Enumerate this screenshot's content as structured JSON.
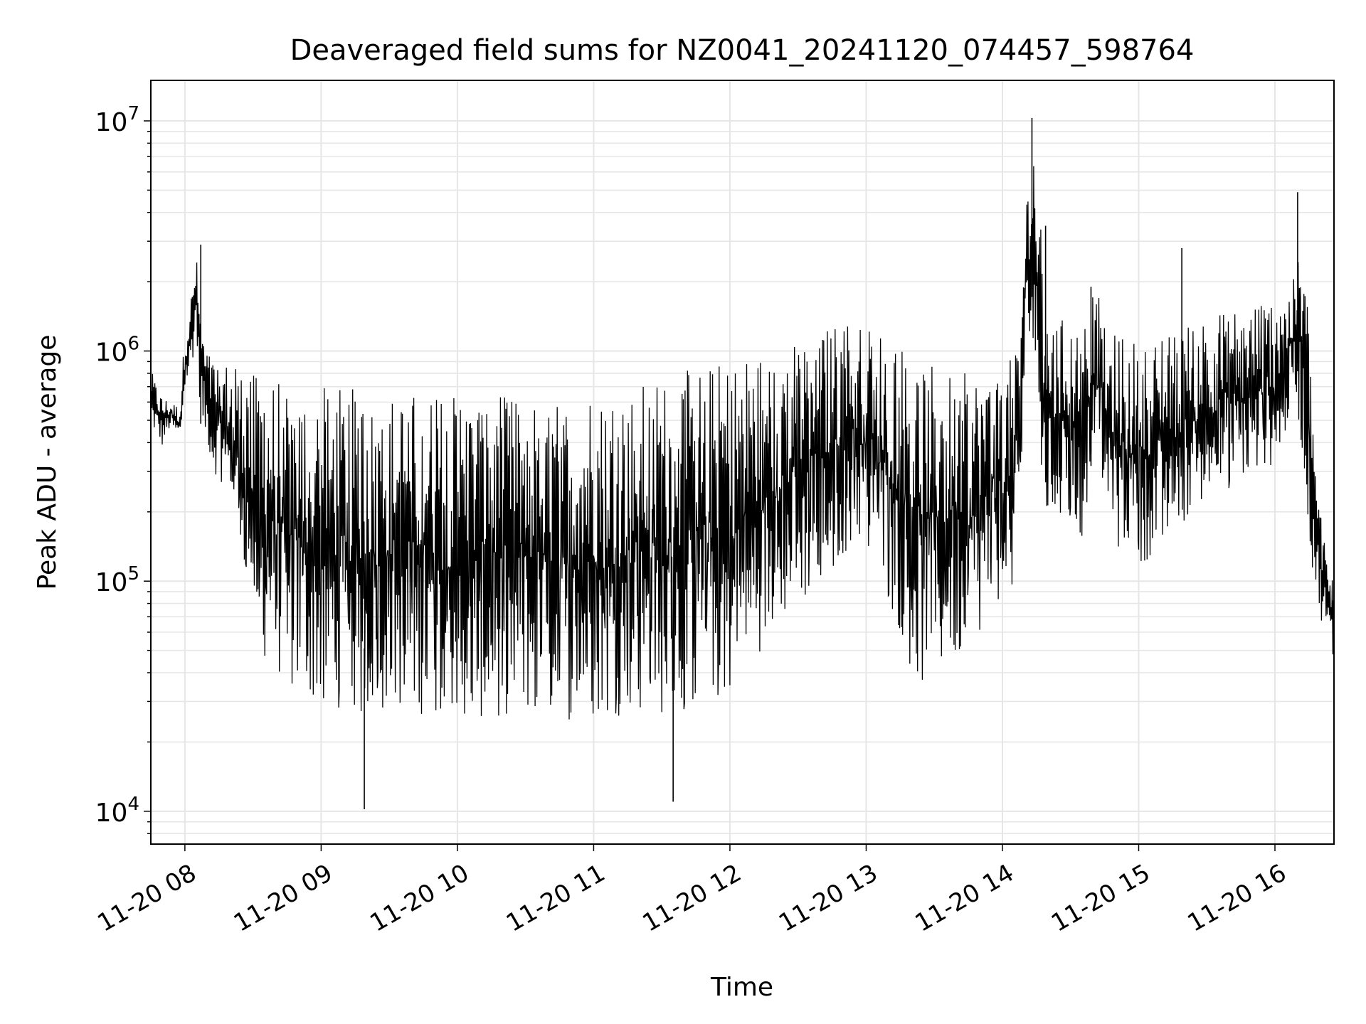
{
  "chart_data": {
    "type": "line",
    "title": "Deaveraged field sums for NZ0041_20241120_074457_598764",
    "xlabel": "Time",
    "ylabel": "Peak ADU - average",
    "yscale": "log",
    "ylim": [
      7200,
      15000000
    ],
    "xlim": [
      "2024-11-20T07:45:00",
      "2024-11-20T16:26:00"
    ],
    "grid": true,
    "line_color": "#000000",
    "grid_color": "#e6e6e6",
    "x_ticks": [
      {
        "value": "2024-11-20T08:00:00",
        "label": "11-20 08"
      },
      {
        "value": "2024-11-20T09:00:00",
        "label": "11-20 09"
      },
      {
        "value": "2024-11-20T10:00:00",
        "label": "11-20 10"
      },
      {
        "value": "2024-11-20T11:00:00",
        "label": "11-20 11"
      },
      {
        "value": "2024-11-20T12:00:00",
        "label": "11-20 12"
      },
      {
        "value": "2024-11-20T13:00:00",
        "label": "11-20 13"
      },
      {
        "value": "2024-11-20T14:00:00",
        "label": "11-20 14"
      },
      {
        "value": "2024-11-20T15:00:00",
        "label": "11-20 15"
      },
      {
        "value": "2024-11-20T16:00:00",
        "label": "11-20 16"
      }
    ],
    "y_ticks": [
      {
        "value": 10000,
        "base": "10",
        "exp": "4"
      },
      {
        "value": 100000,
        "base": "10",
        "exp": "5"
      },
      {
        "value": 1000000,
        "base": "10",
        "exp": "6"
      },
      {
        "value": 10000000,
        "base": "10",
        "exp": "7"
      }
    ],
    "series": [
      {
        "x": [
          "2024-11-20T07:45:00",
          "2024-11-20T07:46:00",
          "2024-11-20T07:48:00",
          "2024-11-20T07:50:00",
          "2024-11-20T07:52:00",
          "2024-11-20T07:54:00",
          "2024-11-20T07:56:00",
          "2024-11-20T07:58:00",
          "2024-11-20T08:00:00",
          "2024-11-20T08:02:00",
          "2024-11-20T08:04:00",
          "2024-11-20T08:05:00",
          "2024-11-20T08:06:00",
          "2024-11-20T08:08:00",
          "2024-11-20T08:10:00",
          "2024-11-20T08:12:00",
          "2024-11-20T08:15:00",
          "2024-11-20T08:18:00",
          "2024-11-20T08:21:00",
          "2024-11-20T08:24:00",
          "2024-11-20T08:27:00",
          "2024-11-20T08:30:00",
          "2024-11-20T08:33:00",
          "2024-11-20T08:36:00",
          "2024-11-20T08:40:00",
          "2024-11-20T08:44:00",
          "2024-11-20T08:48:00",
          "2024-11-20T08:52:00",
          "2024-11-20T08:56:00",
          "2024-11-20T09:00:00",
          "2024-11-20T09:04:00",
          "2024-11-20T09:08:00",
          "2024-11-20T09:12:00",
          "2024-11-20T09:16:00",
          "2024-11-20T09:20:00",
          "2024-11-20T09:25:00",
          "2024-11-20T09:30:00",
          "2024-11-20T09:35:00",
          "2024-11-20T09:40:00",
          "2024-11-20T09:45:00",
          "2024-11-20T09:50:00",
          "2024-11-20T09:55:00",
          "2024-11-20T10:00:00",
          "2024-11-20T10:05:00",
          "2024-11-20T10:10:00",
          "2024-11-20T10:15:00",
          "2024-11-20T10:20:00",
          "2024-11-20T10:25:00",
          "2024-11-20T10:30:00",
          "2024-11-20T10:35:00",
          "2024-11-20T10:40:00",
          "2024-11-20T10:45:00",
          "2024-11-20T10:50:00",
          "2024-11-20T10:55:00",
          "2024-11-20T11:00:00",
          "2024-11-20T11:05:00",
          "2024-11-20T11:10:00",
          "2024-11-20T11:15:00",
          "2024-11-20T11:20:00",
          "2024-11-20T11:25:00",
          "2024-11-20T11:30:00",
          "2024-11-20T11:35:00",
          "2024-11-20T11:40:00",
          "2024-11-20T11:45:00",
          "2024-11-20T11:50:00",
          "2024-11-20T11:55:00",
          "2024-11-20T12:00:00",
          "2024-11-20T12:05:00",
          "2024-11-20T12:10:00",
          "2024-11-20T12:15:00",
          "2024-11-20T12:20:00",
          "2024-11-20T12:25:00",
          "2024-11-20T12:30:00",
          "2024-11-20T12:35:00",
          "2024-11-20T12:40:00",
          "2024-11-20T12:45:00",
          "2024-11-20T12:50:00",
          "2024-11-20T12:55:00",
          "2024-11-20T13:00:00",
          "2024-11-20T13:05:00",
          "2024-11-20T13:10:00",
          "2024-11-20T13:15:00",
          "2024-11-20T13:20:00",
          "2024-11-20T13:25:00",
          "2024-11-20T13:30:00",
          "2024-11-20T13:35:00",
          "2024-11-20T13:40:00",
          "2024-11-20T13:45:00",
          "2024-11-20T13:50:00",
          "2024-11-20T13:55:00",
          "2024-11-20T14:00:00",
          "2024-11-20T14:05:00",
          "2024-11-20T14:08:00",
          "2024-11-20T14:10:00",
          "2024-11-20T14:12:00",
          "2024-11-20T14:14:00",
          "2024-11-20T14:15:00",
          "2024-11-20T14:18:00",
          "2024-11-20T14:20:00",
          "2024-11-20T14:25:00",
          "2024-11-20T14:30:00",
          "2024-11-20T14:35:00",
          "2024-11-20T14:38:00",
          "2024-11-20T14:40:00",
          "2024-11-20T14:43:00",
          "2024-11-20T14:46:00",
          "2024-11-20T14:50:00",
          "2024-11-20T14:55:00",
          "2024-11-20T15:00:00",
          "2024-11-20T15:05:00",
          "2024-11-20T15:10:00",
          "2024-11-20T15:15:00",
          "2024-11-20T15:20:00",
          "2024-11-20T15:25:00",
          "2024-11-20T15:30:00",
          "2024-11-20T15:35:00",
          "2024-11-20T15:40:00",
          "2024-11-20T15:45:00",
          "2024-11-20T15:50:00",
          "2024-11-20T15:55:00",
          "2024-11-20T16:00:00",
          "2024-11-20T16:04:00",
          "2024-11-20T16:06:00",
          "2024-11-20T16:08:00",
          "2024-11-20T16:10:00",
          "2024-11-20T16:12:00",
          "2024-11-20T16:14:00",
          "2024-11-20T16:16:00",
          "2024-11-20T16:18:00",
          "2024-11-20T16:20:00",
          "2024-11-20T16:22:00",
          "2024-11-20T16:24:00",
          "2024-11-20T16:26:00"
        ],
        "low": [
          480000,
          450000,
          420000,
          380000,
          430000,
          470000,
          420000,
          410000,
          650000,
          750000,
          1000000,
          1300000,
          700000,
          450000,
          400000,
          300000,
          280000,
          250000,
          200000,
          150000,
          100000,
          75000,
          55000,
          42000,
          40000,
          36000,
          34000,
          32000,
          30000,
          29000,
          28000,
          28000,
          27000,
          26000,
          26000,
          27000,
          28000,
          28000,
          27000,
          26000,
          26000,
          26000,
          26000,
          25000,
          25000,
          25000,
          26000,
          26000,
          26000,
          26000,
          25000,
          25000,
          25000,
          25000,
          25000,
          25000,
          26000,
          26000,
          26000,
          26000,
          26000,
          27000,
          27000,
          28000,
          29000,
          30000,
          32000,
          38000,
          45000,
          52000,
          60000,
          68000,
          75000,
          85000,
          95000,
          110000,
          130000,
          150000,
          140000,
          100000,
          80000,
          60000,
          40000,
          35000,
          38000,
          40000,
          45000,
          50000,
          60000,
          70000,
          80000,
          90000,
          200000,
          700000,
          1200000,
          900000,
          600000,
          250000,
          150000,
          200000,
          180000,
          150000,
          250000,
          400000,
          300000,
          180000,
          140000,
          130000,
          120000,
          125000,
          140000,
          160000,
          180000,
          200000,
          220000,
          240000,
          250000,
          260000,
          280000,
          300000,
          320000,
          400000,
          500000,
          600000,
          550000,
          350000,
          200000,
          120000,
          90000,
          70000,
          60000,
          50000,
          42000
        ],
        "high": [
          850000,
          780000,
          700000,
          640000,
          620000,
          600000,
          590000,
          580000,
          1300000,
          1600000,
          2200000,
          2700000,
          1900000,
          1200000,
          1000000,
          950000,
          920000,
          900000,
          870000,
          840000,
          820000,
          800000,
          780000,
          760000,
          750000,
          740000,
          730000,
          720000,
          710000,
          700000,
          700000,
          700000,
          690000,
          690000,
          680000,
          680000,
          680000,
          670000,
          670000,
          660000,
          660000,
          650000,
          650000,
          650000,
          640000,
          640000,
          640000,
          640000,
          630000,
          630000,
          630000,
          630000,
          630000,
          640000,
          650000,
          660000,
          680000,
          700000,
          720000,
          740000,
          760000,
          790000,
          820000,
          850000,
          880000,
          900000,
          920000,
          950000,
          980000,
          1000000,
          1050000,
          1100000,
          1150000,
          1200000,
          1250000,
          1300000,
          1350000,
          1400000,
          1350000,
          1300000,
          1200000,
          1100000,
          1000000,
          900000,
          850000,
          820000,
          800000,
          800000,
          820000,
          850000,
          880000,
          950000,
          1500000,
          4500000,
          7000000,
          9000000,
          6000000,
          2500000,
          1500000,
          1400000,
          1350000,
          1300000,
          1500000,
          1800000,
          1700000,
          1300000,
          1200000,
          1150000,
          1100000,
          1100000,
          1150000,
          1200000,
          1300000,
          1400000,
          1450000,
          1500000,
          1550000,
          1600000,
          1650000,
          1700000,
          1750000,
          1800000,
          1850000,
          2000000,
          2500000,
          3000000,
          2000000,
          800000,
          350000,
          200000,
          150000,
          120000,
          100000
        ]
      }
    ],
    "spikes": [
      {
        "x": "2024-11-20T08:07:00",
        "y": 2900000
      },
      {
        "x": "2024-11-20T09:19:00",
        "y": 10200
      },
      {
        "x": "2024-11-20T11:35:00",
        "y": 11000
      },
      {
        "x": "2024-11-20T14:13:00",
        "y": 10300000
      },
      {
        "x": "2024-11-20T14:19:00",
        "y": 3500000
      },
      {
        "x": "2024-11-20T14:39:00",
        "y": 1900000
      },
      {
        "x": "2024-11-20T15:19:00",
        "y": 2800000
      },
      {
        "x": "2024-11-20T16:10:00",
        "y": 4900000
      }
    ]
  }
}
